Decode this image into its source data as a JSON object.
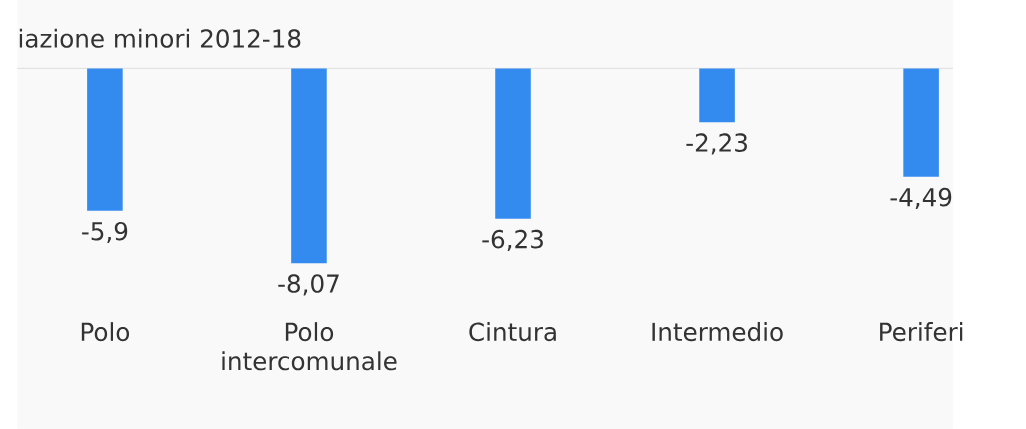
{
  "chart_data": {
    "type": "bar",
    "title": "iazione minori 2012-18",
    "categories": [
      "Polo",
      "Polo intercomunale",
      "Cintura",
      "Intermedio",
      "Periferi"
    ],
    "values": [
      -5.9,
      -8.07,
      -6.23,
      -2.23,
      -4.49
    ],
    "value_labels": [
      "-5,9",
      "-8,07",
      "-6,23",
      "-2,23",
      "-4,49"
    ],
    "color": "#338bef"
  }
}
